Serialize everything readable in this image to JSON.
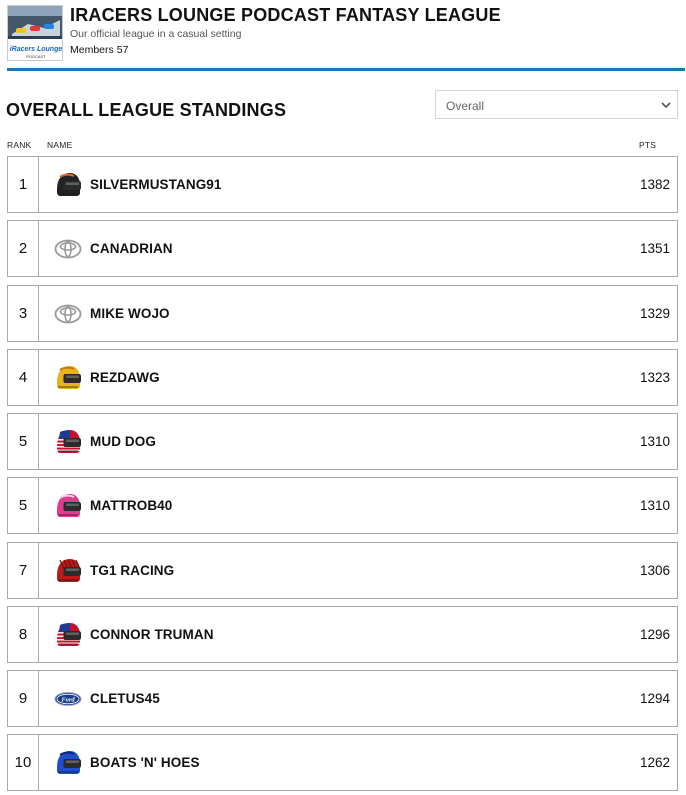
{
  "league": {
    "title": "IRACERS LOUNGE PODCAST FANTASY LEAGUE",
    "subtitle": "Our official league in a casual setting",
    "members_label": "Members",
    "members_count": "57",
    "logo_text": "iRacers Lounge",
    "logo_subtext": "PODCAST"
  },
  "standings": {
    "title": "OVERALL LEAGUE STANDINGS",
    "filter_value": "Overall",
    "columns": {
      "rank": "RANK",
      "name": "NAME",
      "pts": "PTS"
    },
    "rows": [
      {
        "rank": "1",
        "name": "SILVERMUSTANG91",
        "pts": "1382",
        "avatar": "helmet-dark-icon",
        "color": "#222222",
        "accent": "#e0672a"
      },
      {
        "rank": "2",
        "name": "CANADRIAN",
        "pts": "1351",
        "avatar": "toyota-logo-icon",
        "color": "#9a9a9a",
        "accent": "#ffffff"
      },
      {
        "rank": "3",
        "name": "MIKE WOJO",
        "pts": "1329",
        "avatar": "toyota-logo-icon",
        "color": "#9a9a9a",
        "accent": "#ffffff"
      },
      {
        "rank": "4",
        "name": "REZDAWG",
        "pts": "1323",
        "avatar": "helmet-yellow-icon",
        "color": "#e9b21f",
        "accent": "#c47a12"
      },
      {
        "rank": "5",
        "name": "MUD DOG",
        "pts": "1310",
        "avatar": "helmet-flag-icon",
        "color": "#c8102e",
        "accent": "#1f3a93"
      },
      {
        "rank": "5",
        "name": "MATTROB40",
        "pts": "1310",
        "avatar": "helmet-pink-icon",
        "color": "#e23a8e",
        "accent": "#f6d0e4"
      },
      {
        "rank": "7",
        "name": "TG1 RACING",
        "pts": "1306",
        "avatar": "helmet-red-icon",
        "color": "#b51c1c",
        "accent": "#7a0e0e"
      },
      {
        "rank": "8",
        "name": "CONNOR TRUMAN",
        "pts": "1296",
        "avatar": "helmet-flag-icon",
        "color": "#c8102e",
        "accent": "#1f3a93"
      },
      {
        "rank": "9",
        "name": "CLETUS45",
        "pts": "1294",
        "avatar": "ford-logo-icon",
        "color": "#1b3f8b",
        "accent": "#ffffff"
      },
      {
        "rank": "10",
        "name": "BOATS 'N' HOES",
        "pts": "1262",
        "avatar": "helmet-blue-icon",
        "color": "#1f4fc9",
        "accent": "#0d2a7a"
      }
    ]
  },
  "colors": {
    "accent_rule": "#1a78b9",
    "border": "#a9a9a9"
  }
}
